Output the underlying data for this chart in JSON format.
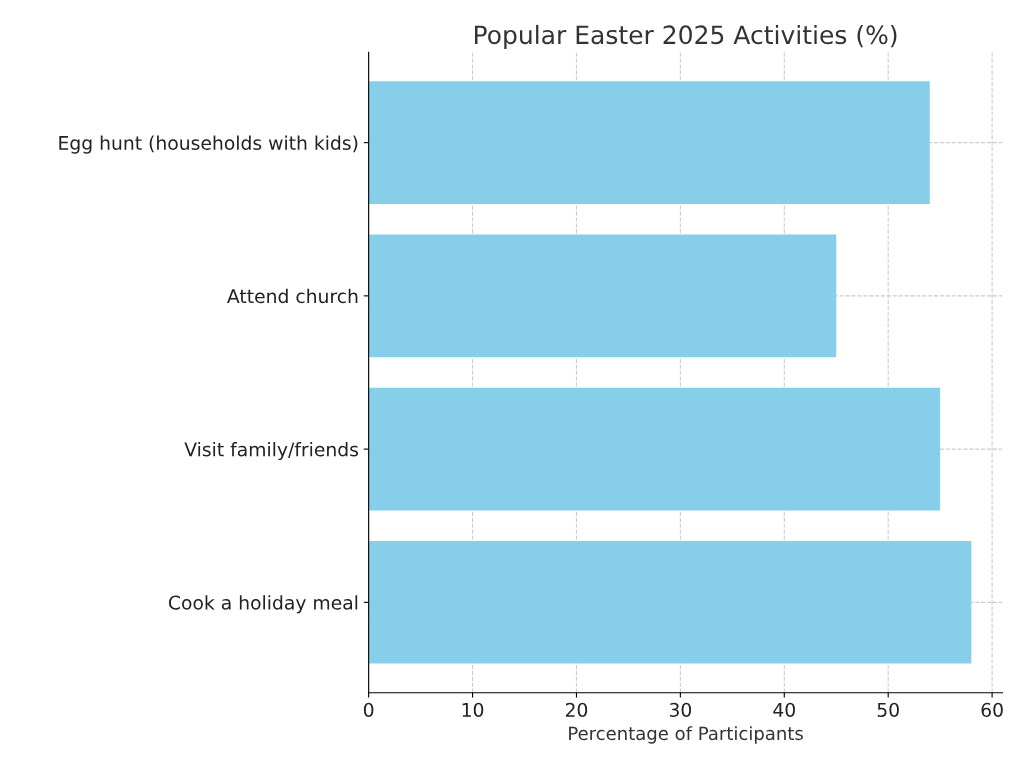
{
  "chart_data": {
    "type": "bar",
    "orientation": "horizontal",
    "title": "Popular Easter 2025 Activities (%)",
    "xlabel": "Percentage of Participants",
    "categories": [
      "Egg hunt (households with kids)",
      "Attend church",
      "Visit family/friends",
      "Cook a holiday meal"
    ],
    "values": [
      54,
      45,
      55,
      58
    ],
    "color": "#87ceeb",
    "xlim": [
      0,
      61
    ],
    "xticks": [
      0,
      10,
      20,
      30,
      40,
      50,
      60
    ],
    "grid": true,
    "line_style": "dashed"
  }
}
